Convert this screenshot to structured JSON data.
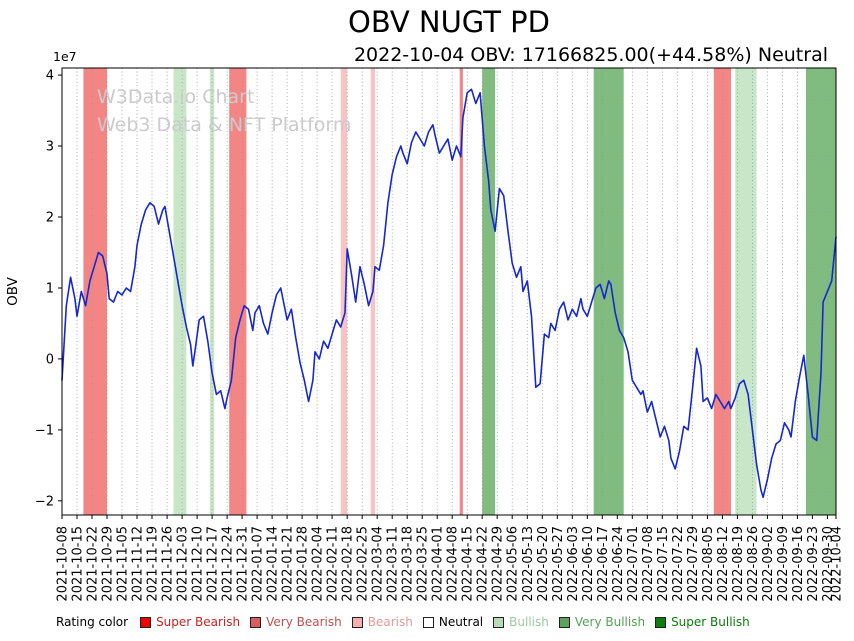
{
  "header": {
    "title": "OBV NUGT PD",
    "subtitle": "2022-10-04 OBV: 17166825.00(+44.58%) Neutral"
  },
  "watermark": {
    "line1": "W3Data.io Chart",
    "line2": "Web3 Data & NFT Platform"
  },
  "legend": {
    "label": "Rating color",
    "items": [
      {
        "key": "super-bearish",
        "label": "Super Bearish",
        "swatch": "#ee0000",
        "text_color": "#cc2222"
      },
      {
        "key": "very-bearish",
        "label": "Very Bearish",
        "swatch": "#d95f5f",
        "text_color": "#c05050"
      },
      {
        "key": "bearish",
        "label": "Bearish",
        "swatch": "#f6b0b0",
        "text_color": "#e39a9a"
      },
      {
        "key": "neutral",
        "label": "Neutral",
        "swatch": "#ffffff",
        "text_color": "#000000"
      },
      {
        "key": "bullish",
        "label": "Bullish",
        "swatch": "#b7dcb7",
        "text_color": "#9dc99d"
      },
      {
        "key": "very-bullish",
        "label": "Very Bullish",
        "swatch": "#5da35d",
        "text_color": "#55a055"
      },
      {
        "key": "super-bullish",
        "label": "Super Bullish",
        "swatch": "#0c7c0c",
        "text_color": "#0c7c0c"
      }
    ]
  },
  "chart_data": {
    "type": "line",
    "title": "OBV NUGT PD",
    "ylabel": "OBV",
    "y_offset_text": "1e7",
    "x_start_date": "2021-10-08",
    "x_end_date": "2022-10-04",
    "x_range_days": [
      0,
      361
    ],
    "ylim_e7": [
      -2.2,
      4.1
    ],
    "yticks_e7": [
      -2,
      -1,
      0,
      1,
      2,
      3,
      4
    ],
    "grid": "vertical-dotted",
    "grid_color": "#999999",
    "line_color": "#1528d0",
    "xtick_labels": [
      "2021-10-08",
      "2021-10-15",
      "2021-10-22",
      "2021-10-29",
      "2021-11-05",
      "2021-11-12",
      "2021-11-19",
      "2021-11-26",
      "2021-12-03",
      "2021-12-10",
      "2021-12-17",
      "2021-12-24",
      "2021-12-31",
      "2022-01-07",
      "2022-01-14",
      "2022-01-21",
      "2022-01-28",
      "2022-02-04",
      "2022-02-11",
      "2022-02-18",
      "2022-02-25",
      "2022-03-04",
      "2022-03-11",
      "2022-03-18",
      "2022-03-25",
      "2022-04-01",
      "2022-04-08",
      "2022-04-15",
      "2022-04-22",
      "2022-04-29",
      "2022-05-06",
      "2022-05-13",
      "2022-05-20",
      "2022-05-27",
      "2022-06-03",
      "2022-06-10",
      "2022-06-17",
      "2022-06-24",
      "2022-07-01",
      "2022-07-08",
      "2022-07-15",
      "2022-07-22",
      "2022-07-29",
      "2022-08-05",
      "2022-08-12",
      "2022-08-19",
      "2022-08-26",
      "2022-09-02",
      "2022-09-09",
      "2022-09-16",
      "2022-09-23",
      "2022-09-30",
      "2022-10-04"
    ],
    "xtick_days": [
      0,
      7,
      14,
      21,
      28,
      35,
      42,
      49,
      56,
      63,
      70,
      77,
      84,
      91,
      98,
      105,
      112,
      119,
      126,
      133,
      140,
      147,
      154,
      161,
      168,
      175,
      182,
      189,
      196,
      203,
      210,
      217,
      224,
      231,
      238,
      245,
      252,
      259,
      266,
      273,
      280,
      287,
      294,
      301,
      308,
      315,
      322,
      329,
      336,
      343,
      350,
      357,
      361
    ],
    "band_colors": {
      "very_bearish": "#f48585",
      "bearish": "#f8c3c3",
      "bullish": "#c9e6c9",
      "very_bullish": "#80bc80"
    },
    "bands": [
      {
        "start_day": 10,
        "end_day": 21,
        "rating": "very_bearish"
      },
      {
        "start_day": 52,
        "end_day": 58,
        "rating": "bullish"
      },
      {
        "start_day": 69,
        "end_day": 71,
        "rating": "bullish"
      },
      {
        "start_day": 78,
        "end_day": 86,
        "rating": "very_bearish"
      },
      {
        "start_day": 130,
        "end_day": 133,
        "rating": "bearish"
      },
      {
        "start_day": 144,
        "end_day": 146,
        "rating": "bearish"
      },
      {
        "start_day": 185.5,
        "end_day": 187,
        "rating": "very_bearish"
      },
      {
        "start_day": 196,
        "end_day": 202,
        "rating": "very_bullish"
      },
      {
        "start_day": 248,
        "end_day": 262,
        "rating": "very_bullish"
      },
      {
        "start_day": 304,
        "end_day": 312,
        "rating": "very_bearish"
      },
      {
        "start_day": 314,
        "end_day": 324,
        "rating": "bullish"
      },
      {
        "start_day": 347,
        "end_day": 361,
        "rating": "very_bullish"
      }
    ],
    "series": {
      "name": "OBV",
      "unit": "1e7",
      "points": [
        [
          0,
          -0.3
        ],
        [
          2,
          0.75
        ],
        [
          4,
          1.15
        ],
        [
          6,
          0.85
        ],
        [
          7,
          0.6
        ],
        [
          9,
          0.95
        ],
        [
          11,
          0.75
        ],
        [
          13,
          1.1
        ],
        [
          15,
          1.3
        ],
        [
          17,
          1.5
        ],
        [
          19,
          1.45
        ],
        [
          21,
          1.2
        ],
        [
          22,
          0.85
        ],
        [
          24,
          0.8
        ],
        [
          26,
          0.95
        ],
        [
          28,
          0.9
        ],
        [
          30,
          1.0
        ],
        [
          32,
          0.95
        ],
        [
          34,
          1.3
        ],
        [
          35,
          1.6
        ],
        [
          37,
          1.9
        ],
        [
          39,
          2.1
        ],
        [
          41,
          2.2
        ],
        [
          43,
          2.15
        ],
        [
          45,
          1.9
        ],
        [
          47,
          2.1
        ],
        [
          48,
          2.15
        ],
        [
          50,
          1.8
        ],
        [
          52,
          1.45
        ],
        [
          54,
          1.1
        ],
        [
          56,
          0.75
        ],
        [
          58,
          0.45
        ],
        [
          60,
          0.2
        ],
        [
          61,
          -0.1
        ],
        [
          62,
          0.1
        ],
        [
          64,
          0.55
        ],
        [
          66,
          0.6
        ],
        [
          68,
          0.25
        ],
        [
          70,
          -0.2
        ],
        [
          72,
          -0.5
        ],
        [
          74,
          -0.45
        ],
        [
          76,
          -0.7
        ],
        [
          77,
          -0.55
        ],
        [
          79,
          -0.3
        ],
        [
          81,
          0.3
        ],
        [
          83,
          0.55
        ],
        [
          85,
          0.75
        ],
        [
          87,
          0.7
        ],
        [
          89,
          0.4
        ],
        [
          90,
          0.65
        ],
        [
          92,
          0.75
        ],
        [
          94,
          0.5
        ],
        [
          96,
          0.35
        ],
        [
          98,
          0.65
        ],
        [
          100,
          0.9
        ],
        [
          102,
          1.0
        ],
        [
          104,
          0.7
        ],
        [
          105,
          0.55
        ],
        [
          107,
          0.7
        ],
        [
          109,
          0.3
        ],
        [
          111,
          -0.05
        ],
        [
          113,
          -0.3
        ],
        [
          115,
          -0.6
        ],
        [
          117,
          -0.3
        ],
        [
          118,
          0.1
        ],
        [
          120,
          0.0
        ],
        [
          122,
          0.25
        ],
        [
          124,
          0.15
        ],
        [
          126,
          0.35
        ],
        [
          128,
          0.55
        ],
        [
          130,
          0.45
        ],
        [
          132,
          0.65
        ],
        [
          133,
          1.55
        ],
        [
          135,
          1.2
        ],
        [
          137,
          0.8
        ],
        [
          139,
          1.3
        ],
        [
          141,
          1.05
        ],
        [
          143,
          0.75
        ],
        [
          145,
          0.95
        ],
        [
          146,
          1.3
        ],
        [
          148,
          1.25
        ],
        [
          150,
          1.6
        ],
        [
          152,
          2.2
        ],
        [
          154,
          2.6
        ],
        [
          156,
          2.85
        ],
        [
          158,
          3.0
        ],
        [
          159,
          2.9
        ],
        [
          161,
          2.75
        ],
        [
          163,
          3.05
        ],
        [
          165,
          3.2
        ],
        [
          167,
          3.1
        ],
        [
          169,
          3.0
        ],
        [
          171,
          3.2
        ],
        [
          173,
          3.3
        ],
        [
          174,
          3.15
        ],
        [
          176,
          2.9
        ],
        [
          178,
          3.0
        ],
        [
          180,
          3.1
        ],
        [
          182,
          2.8
        ],
        [
          184,
          3.0
        ],
        [
          186,
          2.85
        ],
        [
          187,
          3.4
        ],
        [
          189,
          3.75
        ],
        [
          191,
          3.8
        ],
        [
          193,
          3.6
        ],
        [
          195,
          3.75
        ],
        [
          197,
          3.0
        ],
        [
          199,
          2.5
        ],
        [
          200,
          2.1
        ],
        [
          202,
          1.8
        ],
        [
          204,
          2.4
        ],
        [
          206,
          2.3
        ],
        [
          208,
          1.8
        ],
        [
          210,
          1.35
        ],
        [
          212,
          1.15
        ],
        [
          214,
          1.3
        ],
        [
          215,
          0.95
        ],
        [
          217,
          1.1
        ],
        [
          219,
          0.6
        ],
        [
          221,
          -0.4
        ],
        [
          223,
          -0.35
        ],
        [
          225,
          0.35
        ],
        [
          227,
          0.3
        ],
        [
          228,
          0.5
        ],
        [
          230,
          0.4
        ],
        [
          232,
          0.7
        ],
        [
          234,
          0.8
        ],
        [
          236,
          0.55
        ],
        [
          238,
          0.7
        ],
        [
          240,
          0.6
        ],
        [
          242,
          0.85
        ],
        [
          243,
          0.7
        ],
        [
          245,
          0.6
        ],
        [
          247,
          0.8
        ],
        [
          249,
          1.0
        ],
        [
          251,
          1.05
        ],
        [
          253,
          0.85
        ],
        [
          255,
          1.1
        ],
        [
          256,
          1.05
        ],
        [
          258,
          0.65
        ],
        [
          260,
          0.4
        ],
        [
          262,
          0.3
        ],
        [
          264,
          0.1
        ],
        [
          266,
          -0.3
        ],
        [
          268,
          -0.4
        ],
        [
          270,
          -0.5
        ],
        [
          271,
          -0.45
        ],
        [
          273,
          -0.75
        ],
        [
          275,
          -0.6
        ],
        [
          277,
          -0.85
        ],
        [
          279,
          -1.1
        ],
        [
          281,
          -0.95
        ],
        [
          283,
          -1.15
        ],
        [
          284,
          -1.4
        ],
        [
          286,
          -1.55
        ],
        [
          288,
          -1.3
        ],
        [
          290,
          -0.95
        ],
        [
          292,
          -1.0
        ],
        [
          294,
          -0.45
        ],
        [
          296,
          0.15
        ],
        [
          298,
          -0.1
        ],
        [
          299,
          -0.6
        ],
        [
          301,
          -0.55
        ],
        [
          303,
          -0.7
        ],
        [
          305,
          -0.5
        ],
        [
          307,
          -0.6
        ],
        [
          309,
          -0.7
        ],
        [
          311,
          -0.6
        ],
        [
          312,
          -0.7
        ],
        [
          314,
          -0.55
        ],
        [
          316,
          -0.35
        ],
        [
          318,
          -0.3
        ],
        [
          320,
          -0.5
        ],
        [
          322,
          -1.0
        ],
        [
          324,
          -1.5
        ],
        [
          326,
          -1.85
        ],
        [
          327,
          -1.95
        ],
        [
          329,
          -1.7
        ],
        [
          331,
          -1.4
        ],
        [
          333,
          -1.2
        ],
        [
          335,
          -1.15
        ],
        [
          337,
          -0.9
        ],
        [
          339,
          -1.0
        ],
        [
          340,
          -1.1
        ],
        [
          342,
          -0.6
        ],
        [
          344,
          -0.25
        ],
        [
          346,
          0.05
        ],
        [
          348,
          -0.5
        ],
        [
          350,
          -1.1
        ],
        [
          352,
          -1.15
        ],
        [
          354,
          -0.2
        ],
        [
          355,
          0.8
        ],
        [
          357,
          0.95
        ],
        [
          359,
          1.1
        ],
        [
          361,
          1.72
        ]
      ]
    },
    "latest": {
      "date": "2022-10-04",
      "obv": "17166825.00",
      "change_pct": "+44.58%",
      "rating": "Neutral"
    }
  }
}
